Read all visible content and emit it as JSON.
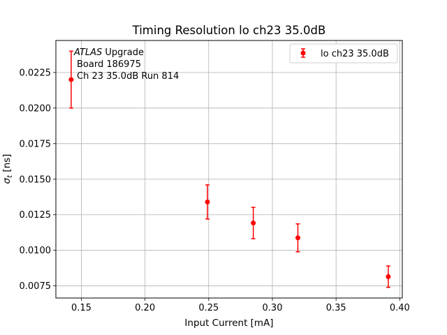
{
  "chart_data": {
    "type": "scatter",
    "title": "Timing Resolution lo ch23 35.0dB",
    "xlabel": "Input Current [mA]",
    "ylabel_main": "σ",
    "ylabel_sub": "t",
    "ylabel_unit": " [ns]",
    "xlim": [
      0.13,
      0.402
    ],
    "ylim": [
      0.00665,
      0.02475
    ],
    "xticks": [
      0.15,
      0.2,
      0.25,
      0.3,
      0.35,
      0.4
    ],
    "xtick_labels": [
      "0.15",
      "0.20",
      "0.25",
      "0.30",
      "0.35",
      "0.40"
    ],
    "yticks": [
      0.0075,
      0.01,
      0.0125,
      0.015,
      0.0175,
      0.02,
      0.0225
    ],
    "ytick_labels": [
      "0.0075",
      "0.0100",
      "0.0125",
      "0.0150",
      "0.0175",
      "0.0200",
      "0.0225"
    ],
    "grid": true,
    "legend_position": "top-right",
    "series": [
      {
        "name": "lo ch23 35.0dB",
        "color": "#ff0000",
        "marker": "circle",
        "points": [
          {
            "x": 0.142,
            "y": 0.022,
            "yerr": 0.002
          },
          {
            "x": 0.249,
            "y": 0.0134,
            "yerr": 0.0012
          },
          {
            "x": 0.285,
            "y": 0.01192,
            "yerr": 0.0011
          },
          {
            "x": 0.32,
            "y": 0.01088,
            "yerr": 0.00098
          },
          {
            "x": 0.391,
            "y": 0.00815,
            "yerr": 0.00075
          }
        ]
      }
    ],
    "annotation": {
      "atlas": "ATLAS",
      "upgrade": " Upgrade",
      "line2": "Board 186975",
      "line3": "Ch 23 35.0dB  Run 814"
    }
  }
}
